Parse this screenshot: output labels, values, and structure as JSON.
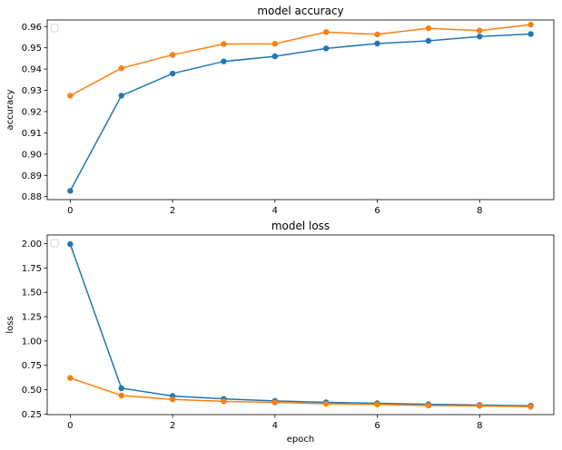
{
  "chart_data": [
    {
      "type": "line",
      "title": "model accuracy",
      "xlabel": "",
      "ylabel": "accuracy",
      "x": [
        0,
        1,
        2,
        3,
        4,
        5,
        6,
        7,
        8,
        9
      ],
      "xticks": [
        "0",
        "2",
        "4",
        "6",
        "8"
      ],
      "xtick_values": [
        0,
        2,
        4,
        6,
        8
      ],
      "yticks": [
        "0.88",
        "0.89",
        "0.90",
        "0.91",
        "0.92",
        "0.93",
        "0.94",
        "0.95",
        "0.96"
      ],
      "ytick_values": [
        0.88,
        0.89,
        0.9,
        0.91,
        0.92,
        0.93,
        0.94,
        0.95,
        0.96
      ],
      "xlim": [
        -0.45,
        9.45
      ],
      "ylim": [
        0.8786,
        0.9631
      ],
      "grid": false,
      "legend": "upper-left (empty)",
      "series": [
        {
          "color": "#1f77b4",
          "marker": "circle",
          "values": [
            0.8827,
            0.9275,
            0.9379,
            0.9436,
            0.946,
            0.9497,
            0.952,
            0.9533,
            0.9553,
            0.9565
          ]
        },
        {
          "color": "#ff7f0e",
          "marker": "circle",
          "values": [
            0.9275,
            0.9404,
            0.9467,
            0.9518,
            0.9519,
            0.9574,
            0.9563,
            0.9592,
            0.9581,
            0.9609
          ]
        }
      ]
    },
    {
      "type": "line",
      "title": "model loss",
      "xlabel": "epoch",
      "ylabel": "loss",
      "x": [
        0,
        1,
        2,
        3,
        4,
        5,
        6,
        7,
        8,
        9
      ],
      "xticks": [
        "0",
        "2",
        "4",
        "6",
        "8"
      ],
      "xtick_values": [
        0,
        2,
        4,
        6,
        8
      ],
      "yticks": [
        "0.25",
        "0.50",
        "0.75",
        "1.00",
        "1.25",
        "1.50",
        "1.75",
        "2.00"
      ],
      "ytick_values": [
        0.25,
        0.5,
        0.75,
        1.0,
        1.25,
        1.5,
        1.75,
        2.0
      ],
      "xlim": [
        -0.45,
        9.45
      ],
      "ylim": [
        0.2436,
        2.0891
      ],
      "grid": false,
      "legend": "upper-left (empty)",
      "series": [
        {
          "color": "#1f77b4",
          "marker": "circle",
          "values": [
            1.995,
            0.515,
            0.435,
            0.405,
            0.385,
            0.37,
            0.36,
            0.35,
            0.342,
            0.335
          ]
        },
        {
          "color": "#ff7f0e",
          "marker": "circle",
          "values": [
            0.62,
            0.44,
            0.4,
            0.38,
            0.368,
            0.355,
            0.348,
            0.337,
            0.333,
            0.325
          ]
        }
      ]
    }
  ]
}
